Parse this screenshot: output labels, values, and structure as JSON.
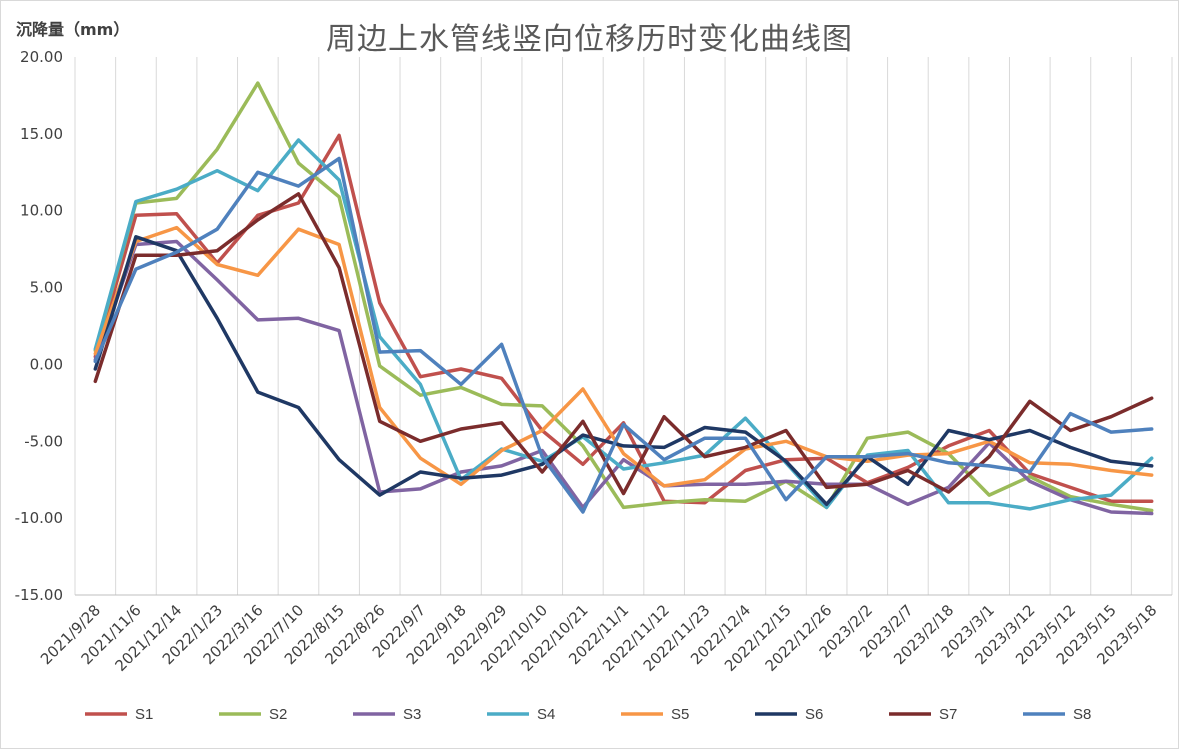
{
  "chart_data": {
    "type": "line",
    "title": "周边上水管线竖向位移历时变化曲线图",
    "ylabel": "沉降量（mm）",
    "xlabel": "",
    "ylim": [
      -15,
      20
    ],
    "yticks": [
      "20.00",
      "15.00",
      "10.00",
      "5.00",
      "0.00",
      "-5.00",
      "-10.00",
      "-15.00"
    ],
    "grid": "vertical",
    "legend": "bottom",
    "categories": [
      "2021/9/28",
      "2021/11/6",
      "2021/12/14",
      "2022/1/23",
      "2022/3/16",
      "2022/7/10",
      "2022/8/15",
      "2022/8/26",
      "2022/9/7",
      "2022/9/18",
      "2022/9/29",
      "2022/10/10",
      "2022/10/21",
      "2022/11/1",
      "2022/11/12",
      "2022/11/23",
      "2022/12/4",
      "2022/12/15",
      "2022/12/26",
      "2023/2/2",
      "2023/2/7",
      "2023/2/18",
      "2023/3/1",
      "2023/3/12",
      "2023/5/12",
      "2023/5/15",
      "2023/5/18"
    ],
    "series": [
      {
        "name": "S1",
        "color": "#c0504d",
        "values": [
          0.5,
          9.7,
          9.8,
          6.6,
          9.7,
          10.5,
          14.9,
          4.0,
          -0.8,
          -0.3,
          -0.9,
          -4.3,
          -6.5,
          -3.8,
          -8.9,
          -9.0,
          -6.9,
          -6.2,
          -6.1,
          -7.7,
          -6.7,
          -5.3,
          -4.3,
          -7.1,
          -8.0,
          -8.9,
          -8.9
        ]
      },
      {
        "name": "S2",
        "color": "#9bbb59",
        "values": [
          0.9,
          10.5,
          10.8,
          14.0,
          18.3,
          13.1,
          10.9,
          -0.1,
          -2.0,
          -1.5,
          -2.6,
          -2.7,
          -5.3,
          -9.3,
          -9.0,
          -8.8,
          -8.9,
          -7.6,
          -9.3,
          -4.8,
          -4.4,
          -5.8,
          -8.5,
          -7.3,
          -8.6,
          -9.1,
          -9.5
        ]
      },
      {
        "name": "S3",
        "color": "#8064a2",
        "values": [
          0.3,
          7.8,
          8.0,
          5.5,
          2.9,
          3.0,
          2.2,
          -8.3,
          -8.1,
          -7.0,
          -6.6,
          -5.6,
          -9.3,
          -6.2,
          -7.9,
          -7.8,
          -7.8,
          -7.6,
          -7.8,
          -7.8,
          -9.1,
          -8.0,
          -5.1,
          -7.6,
          -8.8,
          -9.6,
          -9.7
        ]
      },
      {
        "name": "S4",
        "color": "#4bacc6",
        "values": [
          1.0,
          10.6,
          11.4,
          12.6,
          11.3,
          14.6,
          12.0,
          1.8,
          -1.3,
          -7.5,
          -5.5,
          -6.3,
          -4.7,
          -6.8,
          -6.4,
          -5.9,
          -3.5,
          -6.4,
          -9.3,
          -5.9,
          -5.6,
          -9.0,
          -9.0,
          -9.4,
          -8.8,
          -8.5,
          -6.1
        ]
      },
      {
        "name": "S5",
        "color": "#f79646",
        "values": [
          0.7,
          8.0,
          8.9,
          6.5,
          5.8,
          8.8,
          7.8,
          -2.8,
          -6.1,
          -7.8,
          -5.6,
          -4.3,
          -1.6,
          -5.8,
          -7.9,
          -7.5,
          -5.5,
          -5.0,
          -6.0,
          -6.3,
          -5.9,
          -5.8,
          -5.0,
          -6.4,
          -6.5,
          -6.9,
          -7.2
        ]
      },
      {
        "name": "S6",
        "color": "#1f3864",
        "values": [
          -0.3,
          8.3,
          7.4,
          3.0,
          -1.8,
          -2.8,
          -6.2,
          -8.5,
          -7.0,
          -7.4,
          -7.2,
          -6.5,
          -4.6,
          -5.3,
          -5.4,
          -4.1,
          -4.4,
          -6.3,
          -9.1,
          -6.0,
          -7.8,
          -4.3,
          -4.9,
          -4.3,
          -5.4,
          -6.3,
          -6.6
        ]
      },
      {
        "name": "S7",
        "color": "#7b2c2c",
        "values": [
          -1.1,
          7.1,
          7.1,
          7.4,
          9.4,
          11.1,
          6.3,
          -3.7,
          -5.0,
          -4.2,
          -3.8,
          -7.0,
          -3.7,
          -8.4,
          -3.4,
          -6.0,
          -5.4,
          -4.3,
          -8.0,
          -7.8,
          -6.9,
          -8.3,
          -6.0,
          -2.4,
          -4.3,
          -3.4,
          -2.2
        ]
      },
      {
        "name": "S8",
        "color": "#4f81bd",
        "values": [
          0.2,
          6.2,
          7.3,
          8.8,
          12.5,
          11.6,
          13.4,
          0.8,
          0.9,
          -1.3,
          1.3,
          -6.0,
          -9.6,
          -3.9,
          -6.2,
          -4.8,
          -4.8,
          -8.8,
          -6.0,
          -6.0,
          -5.8,
          -6.4,
          -6.6,
          -7.0,
          -3.2,
          -4.4,
          -4.2
        ]
      }
    ]
  }
}
